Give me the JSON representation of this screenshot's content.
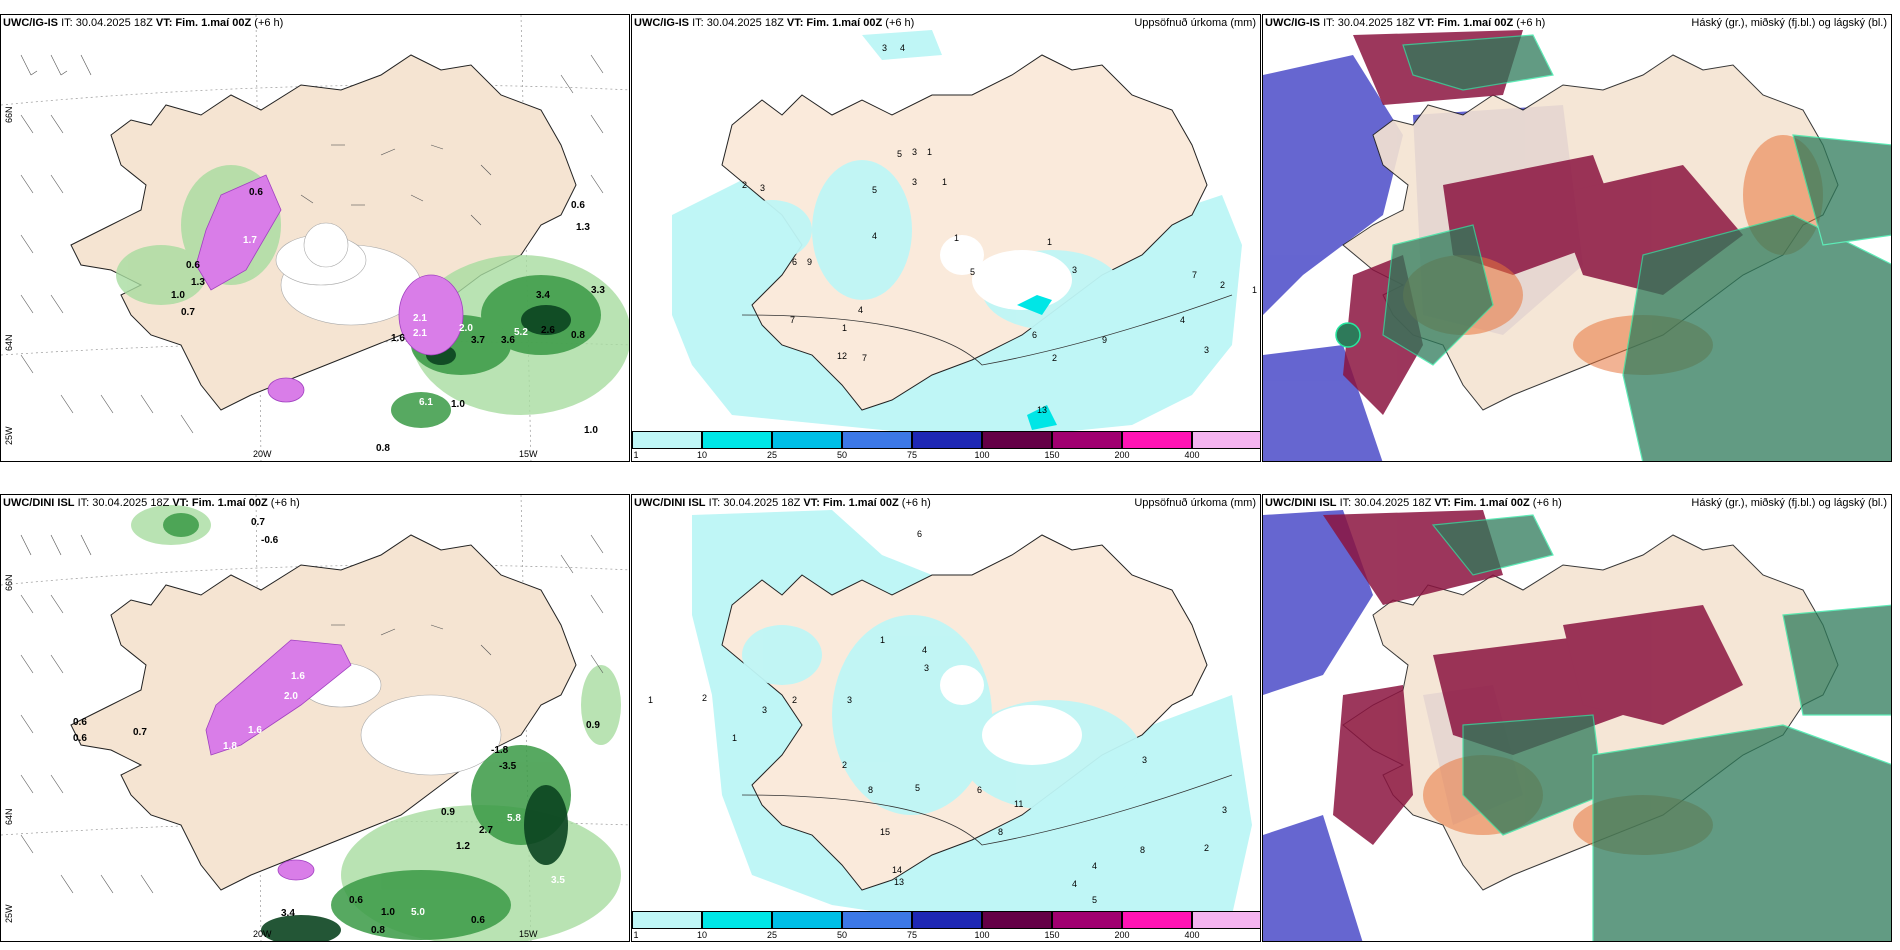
{
  "panels": [
    {
      "id": "p1",
      "model": "UWC/IG-IS",
      "it": "IT: 30.04.2025 18Z",
      "vt_label": "VT:",
      "vt": "Fim. 1.maí 00Z",
      "lead": "(+6 h)",
      "right": ""
    },
    {
      "id": "p2",
      "model": "UWC/IG-IS",
      "it": "IT: 30.04.2025 18Z",
      "vt_label": "VT:",
      "vt": "Fim. 1.maí 00Z",
      "lead": "(+6 h)",
      "right": "Uppsöfnuð úrkoma (mm)"
    },
    {
      "id": "p3",
      "model": "UWC/IG-IS",
      "it": "IT: 30.04.2025 18Z",
      "vt_label": "VT:",
      "vt": "Fim. 1.maí 00Z",
      "lead": "(+6 h)",
      "right": "Háský (gr.), miðský (fj.bl.) og lágský (bl.)"
    },
    {
      "id": "p4",
      "model": "UWC/DINI ISL",
      "it": "IT: 30.04.2025 18Z",
      "vt_label": "VT:",
      "vt": "Fim. 1.maí 00Z",
      "lead": "(+6 h)",
      "right": ""
    },
    {
      "id": "p5",
      "model": "UWC/DINI ISL",
      "it": "IT: 30.04.2025 18Z",
      "vt_label": "VT:",
      "vt": "Fim. 1.maí 00Z",
      "lead": "(+6 h)",
      "right": "Uppsöfnuð úrkoma (mm)"
    },
    {
      "id": "p6",
      "model": "UWC/DINI ISL",
      "it": "IT: 30.04.2025 18Z",
      "vt_label": "VT:",
      "vt": "Fim. 1.maí 00Z",
      "lead": "(+6 h)",
      "right": "Háský (gr.), miðský (fj.bl.) og lágský (bl.)"
    }
  ],
  "colorbar": {
    "labels": [
      "1",
      "10",
      "25",
      "50",
      "75",
      "100",
      "150",
      "200",
      "400"
    ],
    "colors": [
      "#bff6f6",
      "#00e6e6",
      "#00bfe6",
      "#3c78e6",
      "#1e28b4",
      "#640046",
      "#a00070",
      "#ff14b4",
      "#f5b4f0"
    ]
  },
  "axes": {
    "lon_labels": [
      "20W",
      "15W"
    ],
    "lat_labels": [
      "66N",
      "64N"
    ],
    "lat_left_top": "66N",
    "lat_left_bottom": "25W"
  },
  "p1_values": [
    "0.6",
    "1.7",
    "0.6",
    "1.0",
    "1.3",
    "0.7",
    "2.1",
    "2.1",
    "2.0",
    "1.6",
    "3.7",
    "3.6",
    "5.2",
    "2.6",
    "0.8",
    "3.4",
    "3.3",
    "6.1",
    "1.0",
    "0.6",
    "1.3",
    "0.8",
    "1.0"
  ],
  "p4_values": [
    "0.7",
    "-0.6",
    "0.6",
    "0.6",
    "0.7",
    "1.6",
    "2.0",
    "1.6",
    "1.8",
    "-1.8",
    "-3.5",
    "0.9",
    "2.7",
    "5.8",
    "1.2",
    "3.5",
    "0.6",
    "1.0",
    "5.0",
    "3.4",
    "0.9",
    "0.8",
    "0.6"
  ],
  "p2_values": [
    "3",
    "4",
    "5",
    "3",
    "1",
    "1",
    "2",
    "3",
    "5",
    "3",
    "4",
    "6",
    "9",
    "7",
    "4",
    "1",
    "1",
    "5",
    "7",
    "12",
    "1",
    "3",
    "6",
    "2",
    "13",
    "9",
    "7",
    "4",
    "3",
    "2",
    "1"
  ],
  "p5_values": [
    "6",
    "2",
    "1",
    "1",
    "4",
    "3",
    "3",
    "1",
    "2",
    "3",
    "2",
    "8",
    "15",
    "14",
    "5",
    "13",
    "8",
    "6",
    "11",
    "3",
    "4",
    "4",
    "5",
    "8",
    "3",
    "2"
  ]
}
